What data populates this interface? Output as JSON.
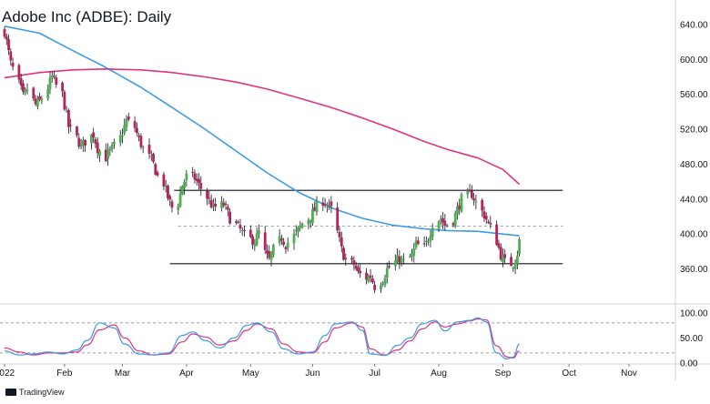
{
  "chart_data": {
    "type": "candlestick",
    "title": "Adobe Inc (ADBE): Daily",
    "price_axis": {
      "ticks": [
        640,
        600,
        560,
        520,
        480,
        440,
        400,
        360
      ],
      "tick_labels": [
        "640.00",
        "600.00",
        "560.00",
        "520.00",
        "480.00",
        "440.00",
        "400.00",
        "360.00"
      ],
      "range": [
        320,
        668
      ]
    },
    "time_axis": {
      "tick_labels": [
        "2022",
        "Feb",
        "Mar",
        "Apr",
        "May",
        "Jun",
        "Jul",
        "Aug",
        "Sep",
        "Oct",
        "Nov"
      ],
      "tick_dates": [
        "2022-01-03",
        "2022-02-01",
        "2022-03-01",
        "2022-04-01",
        "2022-05-02",
        "2022-06-01",
        "2022-07-01",
        "2022-08-01",
        "2022-09-01",
        "2022-10-03",
        "2022-11-01"
      ]
    },
    "colors": {
      "up": "#4caf50",
      "down": "#b5235a",
      "ma_fast": "#3d9be9",
      "ma_slow": "#e0337f",
      "stoch_k": "#3d9be9",
      "stoch_d": "#e0337f",
      "lines": "#131722"
    },
    "price_path": [
      [
        "2022-01-03",
        632
      ],
      [
        "2022-01-04",
        620
      ],
      [
        "2022-01-06",
        595
      ],
      [
        "2022-01-10",
        572
      ],
      [
        "2022-01-12",
        558
      ],
      [
        "2022-01-14",
        566
      ],
      [
        "2022-01-18",
        548
      ],
      [
        "2022-01-20",
        552
      ],
      [
        "2022-01-24",
        568
      ],
      [
        "2022-01-26",
        580
      ],
      [
        "2022-01-28",
        570
      ],
      [
        "2022-01-31",
        560
      ],
      [
        "2022-02-03",
        523
      ],
      [
        "2022-02-07",
        510
      ],
      [
        "2022-02-09",
        500
      ],
      [
        "2022-02-11",
        506
      ],
      [
        "2022-02-15",
        514
      ],
      [
        "2022-02-17",
        498
      ],
      [
        "2022-02-21",
        488
      ],
      [
        "2022-02-24",
        498
      ],
      [
        "2022-02-28",
        510
      ],
      [
        "2022-03-03",
        530
      ],
      [
        "2022-03-07",
        522
      ],
      [
        "2022-03-09",
        508
      ],
      [
        "2022-03-11",
        498
      ],
      [
        "2022-03-14",
        488
      ],
      [
        "2022-03-16",
        480
      ],
      [
        "2022-03-18",
        466
      ],
      [
        "2022-03-21",
        458
      ],
      [
        "2022-03-23",
        442
      ],
      [
        "2022-03-25",
        430
      ],
      [
        "2022-03-28",
        436
      ],
      [
        "2022-03-30",
        456
      ],
      [
        "2022-04-01",
        466
      ],
      [
        "2022-04-05",
        464
      ],
      [
        "2022-04-07",
        456
      ],
      [
        "2022-04-11",
        442
      ],
      [
        "2022-04-14",
        430
      ],
      [
        "2022-04-19",
        434
      ],
      [
        "2022-04-22",
        418
      ],
      [
        "2022-04-26",
        408
      ],
      [
        "2022-04-29",
        398
      ],
      [
        "2022-05-04",
        392
      ],
      [
        "2022-05-06",
        402
      ],
      [
        "2022-05-09",
        378
      ],
      [
        "2022-05-11",
        370
      ],
      [
        "2022-05-13",
        382
      ],
      [
        "2022-05-17",
        396
      ],
      [
        "2022-05-19",
        388
      ],
      [
        "2022-05-23",
        398
      ],
      [
        "2022-05-25",
        404
      ],
      [
        "2022-05-27",
        412
      ],
      [
        "2022-05-31",
        420
      ],
      [
        "2022-06-03",
        432
      ],
      [
        "2022-06-06",
        438
      ],
      [
        "2022-06-08",
        434
      ],
      [
        "2022-06-10",
        428
      ],
      [
        "2022-06-13",
        402
      ],
      [
        "2022-06-15",
        382
      ],
      [
        "2022-06-17",
        370
      ],
      [
        "2022-06-21",
        365
      ],
      [
        "2022-06-23",
        355
      ],
      [
        "2022-06-27",
        350
      ],
      [
        "2022-06-29",
        352
      ],
      [
        "2022-07-01",
        340
      ],
      [
        "2022-07-05",
        348
      ],
      [
        "2022-07-07",
        360
      ],
      [
        "2022-07-11",
        368
      ],
      [
        "2022-07-13",
        372
      ],
      [
        "2022-07-15",
        368
      ],
      [
        "2022-07-19",
        375
      ],
      [
        "2022-07-21",
        388
      ],
      [
        "2022-07-25",
        384
      ],
      [
        "2022-07-27",
        395
      ],
      [
        "2022-07-29",
        412
      ],
      [
        "2022-08-02",
        418
      ],
      [
        "2022-08-04",
        410
      ],
      [
        "2022-08-08",
        416
      ],
      [
        "2022-08-10",
        428
      ],
      [
        "2022-08-12",
        440
      ],
      [
        "2022-08-15",
        444
      ],
      [
        "2022-08-17",
        446
      ],
      [
        "2022-08-19",
        436
      ],
      [
        "2022-08-23",
        422
      ],
      [
        "2022-08-25",
        412
      ],
      [
        "2022-08-29",
        392
      ],
      [
        "2022-08-31",
        376
      ],
      [
        "2022-09-02",
        368
      ],
      [
        "2022-09-06",
        366
      ],
      [
        "2022-09-08",
        378
      ],
      [
        "2022-09-09",
        392
      ]
    ],
    "moving_averages": [
      {
        "color": "#3d9be9",
        "points": [
          [
            "2022-01-03",
            638
          ],
          [
            "2022-01-20",
            630
          ],
          [
            "2022-02-05",
            610
          ],
          [
            "2022-02-20",
            592
          ],
          [
            "2022-03-10",
            568
          ],
          [
            "2022-03-25",
            545
          ],
          [
            "2022-04-10",
            520
          ],
          [
            "2022-04-25",
            495
          ],
          [
            "2022-05-10",
            470
          ],
          [
            "2022-05-25",
            448
          ],
          [
            "2022-06-10",
            430
          ],
          [
            "2022-06-25",
            418
          ],
          [
            "2022-07-10",
            410
          ],
          [
            "2022-07-25",
            406
          ],
          [
            "2022-08-05",
            404
          ],
          [
            "2022-08-20",
            403
          ],
          [
            "2022-09-01",
            400
          ],
          [
            "2022-09-09",
            398
          ]
        ]
      },
      {
        "color": "#e0337f",
        "points": [
          [
            "2022-01-03",
            579
          ],
          [
            "2022-01-20",
            585
          ],
          [
            "2022-02-05",
            588
          ],
          [
            "2022-02-20",
            589
          ],
          [
            "2022-03-10",
            588
          ],
          [
            "2022-03-25",
            585
          ],
          [
            "2022-04-10",
            580
          ],
          [
            "2022-04-25",
            574
          ],
          [
            "2022-05-10",
            566
          ],
          [
            "2022-05-25",
            556
          ],
          [
            "2022-06-10",
            545
          ],
          [
            "2022-06-25",
            533
          ],
          [
            "2022-07-10",
            520
          ],
          [
            "2022-07-25",
            506
          ],
          [
            "2022-08-05",
            497
          ],
          [
            "2022-08-20",
            487
          ],
          [
            "2022-09-01",
            474
          ],
          [
            "2022-09-09",
            457
          ]
        ]
      }
    ],
    "horizontal_lines": [
      {
        "price": 450,
        "from": "2022-03-26",
        "to": "2022-09-30",
        "style": "solid"
      },
      {
        "price": 409,
        "from": "2022-03-28",
        "to": "2022-09-30",
        "style": "dashed"
      },
      {
        "price": 366,
        "from": "2022-03-24",
        "to": "2022-09-30",
        "style": "solid"
      }
    ],
    "stochastic": {
      "ticks": [
        100,
        50,
        0
      ],
      "tick_labels": [
        "100.00",
        "50.00",
        "0.00"
      ],
      "levels": [
        80,
        20
      ],
      "range": [
        -2,
        118
      ],
      "k": [
        [
          "2022-01-03",
          24
        ],
        [
          "2022-01-10",
          16
        ],
        [
          "2022-01-17",
          18
        ],
        [
          "2022-01-24",
          22
        ],
        [
          "2022-01-31",
          18
        ],
        [
          "2022-02-07",
          26
        ],
        [
          "2022-02-12",
          45
        ],
        [
          "2022-02-18",
          80
        ],
        [
          "2022-02-25",
          70
        ],
        [
          "2022-03-02",
          38
        ],
        [
          "2022-03-09",
          18
        ],
        [
          "2022-03-16",
          16
        ],
        [
          "2022-03-23",
          20
        ],
        [
          "2022-03-30",
          55
        ],
        [
          "2022-04-04",
          62
        ],
        [
          "2022-04-10",
          45
        ],
        [
          "2022-04-17",
          30
        ],
        [
          "2022-04-24",
          50
        ],
        [
          "2022-04-30",
          75
        ],
        [
          "2022-05-05",
          80
        ],
        [
          "2022-05-12",
          62
        ],
        [
          "2022-05-18",
          28
        ],
        [
          "2022-05-25",
          18
        ],
        [
          "2022-06-01",
          22
        ],
        [
          "2022-06-07",
          55
        ],
        [
          "2022-06-12",
          78
        ],
        [
          "2022-06-20",
          82
        ],
        [
          "2022-06-25",
          65
        ],
        [
          "2022-06-29",
          18
        ],
        [
          "2022-07-06",
          15
        ],
        [
          "2022-07-12",
          35
        ],
        [
          "2022-07-18",
          50
        ],
        [
          "2022-07-24",
          78
        ],
        [
          "2022-07-30",
          85
        ],
        [
          "2022-08-04",
          64
        ],
        [
          "2022-08-10",
          82
        ],
        [
          "2022-08-16",
          85
        ],
        [
          "2022-08-20",
          90
        ],
        [
          "2022-08-24",
          82
        ],
        [
          "2022-08-29",
          20
        ],
        [
          "2022-09-03",
          8
        ],
        [
          "2022-09-06",
          12
        ],
        [
          "2022-09-09",
          38
        ]
      ],
      "d": [
        [
          "2022-01-03",
          30
        ],
        [
          "2022-01-10",
          22
        ],
        [
          "2022-01-17",
          16
        ],
        [
          "2022-01-24",
          20
        ],
        [
          "2022-01-31",
          20
        ],
        [
          "2022-02-07",
          22
        ],
        [
          "2022-02-12",
          36
        ],
        [
          "2022-02-18",
          66
        ],
        [
          "2022-02-25",
          76
        ],
        [
          "2022-03-02",
          50
        ],
        [
          "2022-03-09",
          24
        ],
        [
          "2022-03-16",
          16
        ],
        [
          "2022-03-23",
          18
        ],
        [
          "2022-03-30",
          42
        ],
        [
          "2022-04-04",
          58
        ],
        [
          "2022-04-10",
          52
        ],
        [
          "2022-04-17",
          36
        ],
        [
          "2022-04-24",
          44
        ],
        [
          "2022-04-30",
          65
        ],
        [
          "2022-05-05",
          78
        ],
        [
          "2022-05-12",
          68
        ],
        [
          "2022-05-18",
          38
        ],
        [
          "2022-05-25",
          22
        ],
        [
          "2022-06-01",
          20
        ],
        [
          "2022-06-07",
          42
        ],
        [
          "2022-06-12",
          70
        ],
        [
          "2022-06-20",
          80
        ],
        [
          "2022-06-25",
          72
        ],
        [
          "2022-06-29",
          28
        ],
        [
          "2022-07-06",
          16
        ],
        [
          "2022-07-12",
          26
        ],
        [
          "2022-07-18",
          44
        ],
        [
          "2022-07-24",
          68
        ],
        [
          "2022-07-30",
          82
        ],
        [
          "2022-08-04",
          72
        ],
        [
          "2022-08-10",
          78
        ],
        [
          "2022-08-16",
          84
        ],
        [
          "2022-08-20",
          88
        ],
        [
          "2022-08-24",
          86
        ],
        [
          "2022-08-29",
          34
        ],
        [
          "2022-09-03",
          12
        ],
        [
          "2022-09-06",
          10
        ],
        [
          "2022-09-09",
          24
        ]
      ]
    }
  },
  "footer": {
    "watermark": "TradingView"
  }
}
